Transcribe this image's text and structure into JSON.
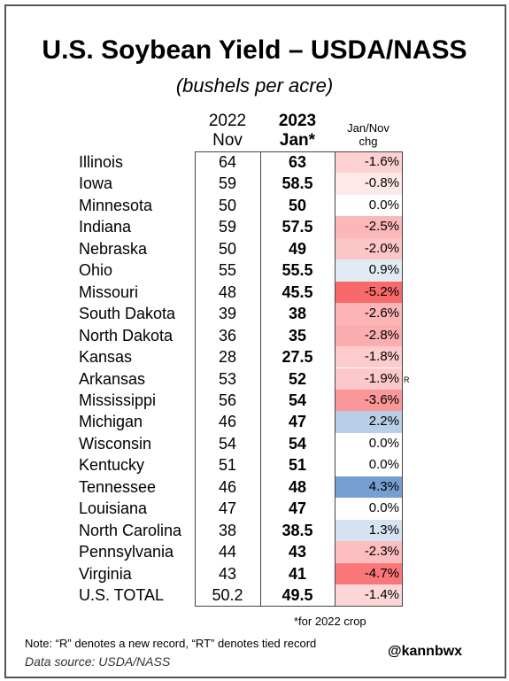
{
  "title": "U.S. Soybean Yield – USDA/NASS",
  "subtitle": "(bushels per acre)",
  "headers": {
    "col1_line1": "2022",
    "col1_line2": "Nov",
    "col2_line1": "2023",
    "col2_line2": "Jan*",
    "col3_line1": "Jan/Nov",
    "col3_line2": "chg"
  },
  "footnote_crop": "*for 2022 crop",
  "note": "Note: “R” denotes a new record, “RT” denotes tied record",
  "source": "Data source: USDA/NASS",
  "handle": "@kannbwx",
  "chart_data": {
    "type": "table",
    "columns": [
      "2022 Nov",
      "2023 Jan*",
      "Jan/Nov chg"
    ],
    "rows": [
      {
        "state": "Illinois",
        "nov": "64",
        "jan": "63",
        "chg": "-1.6%",
        "chg_value": -1.6,
        "mark": ""
      },
      {
        "state": "Iowa",
        "nov": "59",
        "jan": "58.5",
        "chg": "-0.8%",
        "chg_value": -0.8,
        "mark": ""
      },
      {
        "state": "Minnesota",
        "nov": "50",
        "jan": "50",
        "chg": "0.0%",
        "chg_value": 0.0,
        "mark": ""
      },
      {
        "state": "Indiana",
        "nov": "59",
        "jan": "57.5",
        "chg": "-2.5%",
        "chg_value": -2.5,
        "mark": ""
      },
      {
        "state": "Nebraska",
        "nov": "50",
        "jan": "49",
        "chg": "-2.0%",
        "chg_value": -2.0,
        "mark": ""
      },
      {
        "state": "Ohio",
        "nov": "55",
        "jan": "55.5",
        "chg": "0.9%",
        "chg_value": 0.9,
        "mark": ""
      },
      {
        "state": "Missouri",
        "nov": "48",
        "jan": "45.5",
        "chg": "-5.2%",
        "chg_value": -5.2,
        "mark": ""
      },
      {
        "state": "South Dakota",
        "nov": "39",
        "jan": "38",
        "chg": "-2.6%",
        "chg_value": -2.6,
        "mark": ""
      },
      {
        "state": "North Dakota",
        "nov": "36",
        "jan": "35",
        "chg": "-2.8%",
        "chg_value": -2.8,
        "mark": ""
      },
      {
        "state": "Kansas",
        "nov": "28",
        "jan": "27.5",
        "chg": "-1.8%",
        "chg_value": -1.8,
        "mark": ""
      },
      {
        "state": "Arkansas",
        "nov": "53",
        "jan": "52",
        "chg": "-1.9%",
        "chg_value": -1.9,
        "mark": "R"
      },
      {
        "state": "Mississippi",
        "nov": "56",
        "jan": "54",
        "chg": "-3.6%",
        "chg_value": -3.6,
        "mark": ""
      },
      {
        "state": "Michigan",
        "nov": "46",
        "jan": "47",
        "chg": "2.2%",
        "chg_value": 2.2,
        "mark": ""
      },
      {
        "state": "Wisconsin",
        "nov": "54",
        "jan": "54",
        "chg": "0.0%",
        "chg_value": 0.0,
        "mark": ""
      },
      {
        "state": "Kentucky",
        "nov": "51",
        "jan": "51",
        "chg": "0.0%",
        "chg_value": 0.0,
        "mark": ""
      },
      {
        "state": "Tennessee",
        "nov": "46",
        "jan": "48",
        "chg": "4.3%",
        "chg_value": 4.3,
        "mark": ""
      },
      {
        "state": "Louisiana",
        "nov": "47",
        "jan": "47",
        "chg": "0.0%",
        "chg_value": 0.0,
        "mark": ""
      },
      {
        "state": "North Carolina",
        "nov": "38",
        "jan": "38.5",
        "chg": "1.3%",
        "chg_value": 1.3,
        "mark": ""
      },
      {
        "state": "Pennsylvania",
        "nov": "44",
        "jan": "43",
        "chg": "-2.3%",
        "chg_value": -2.3,
        "mark": ""
      },
      {
        "state": "Virginia",
        "nov": "43",
        "jan": "41",
        "chg": "-4.7%",
        "chg_value": -4.7,
        "mark": ""
      },
      {
        "state": "U.S. TOTAL",
        "nov": "50.2",
        "jan": "49.5",
        "chg": "-1.4%",
        "chg_value": -1.4,
        "mark": ""
      }
    ],
    "colors": {
      "negative": "#f8696b",
      "neutral": "#ffffff",
      "positive": "#5a8ac6"
    }
  }
}
